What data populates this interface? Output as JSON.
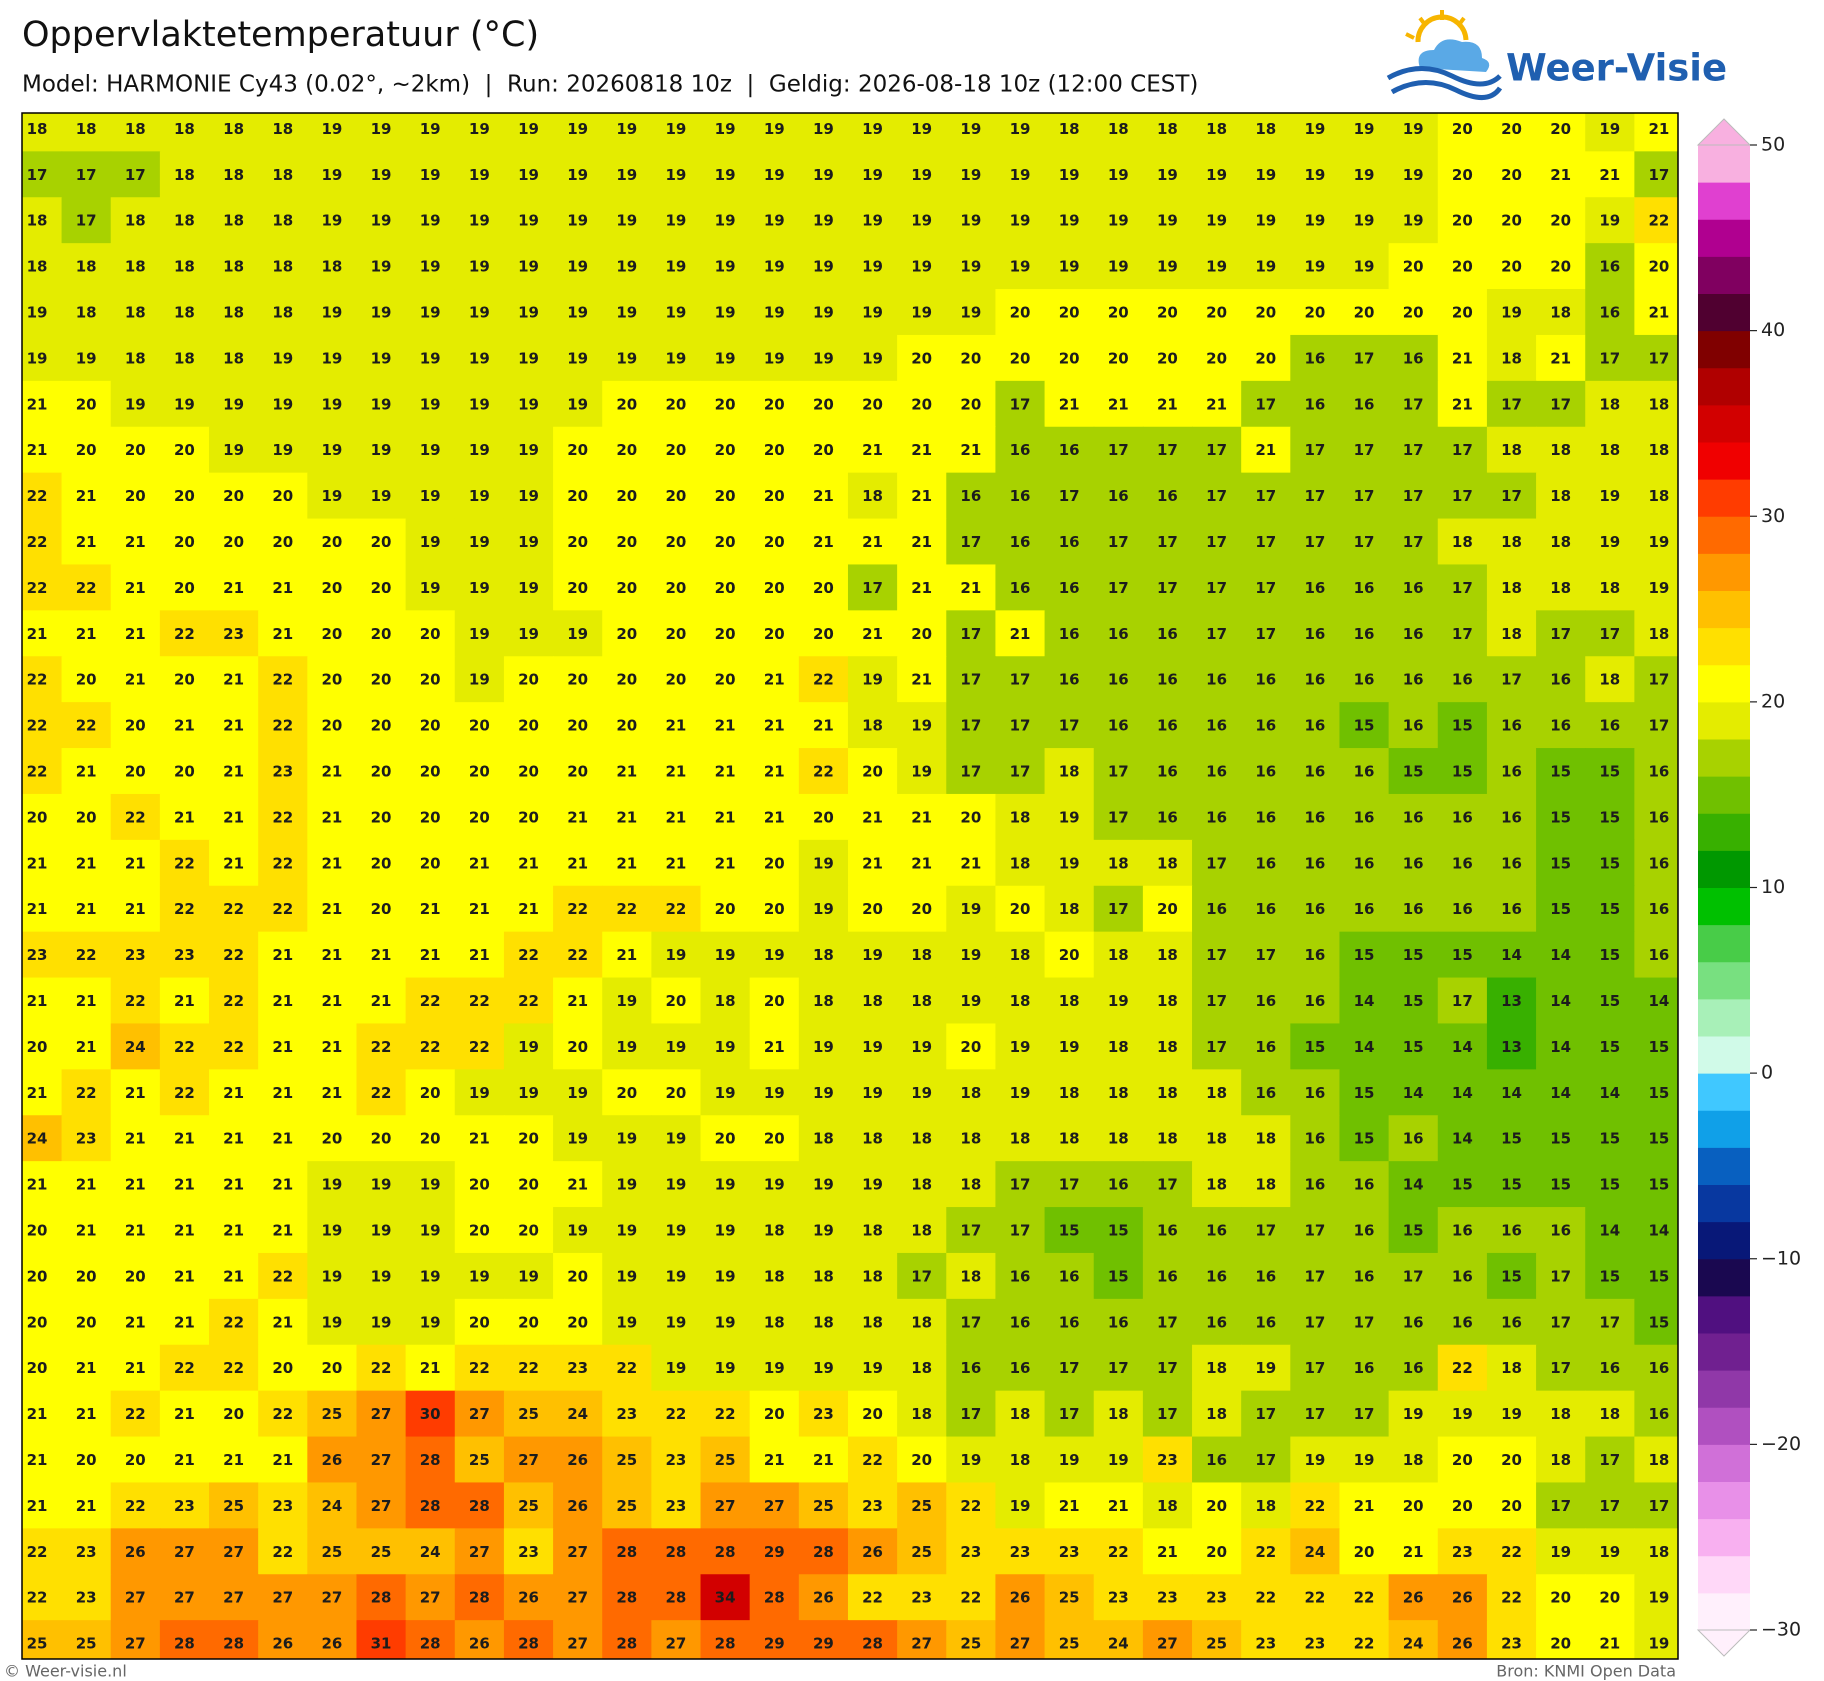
{
  "chart_data": {
    "type": "heatmap",
    "title": "Oppervlaktetemperatuur (°C)",
    "subtitle": "Model: HARMONIE Cy43 (0.02°, ~2km)  |  Run: 20260818 10z  |  Geldig: 2026-08-18 10z (12:00 CEST)",
    "values": [
      [
        18,
        18,
        18,
        18,
        18,
        18,
        19,
        19,
        19,
        19,
        19,
        19,
        19,
        19,
        19,
        19,
        19,
        19,
        19,
        19,
        19,
        18,
        18,
        18,
        18,
        18,
        19,
        19,
        19,
        20,
        20,
        20,
        19,
        21
      ],
      [
        17,
        17,
        17,
        18,
        18,
        18,
        19,
        19,
        19,
        19,
        19,
        19,
        19,
        19,
        19,
        19,
        19,
        19,
        19,
        19,
        19,
        19,
        19,
        19,
        19,
        19,
        19,
        19,
        19,
        20,
        20,
        21,
        21,
        17
      ],
      [
        18,
        17,
        18,
        18,
        18,
        18,
        19,
        19,
        19,
        19,
        19,
        19,
        19,
        19,
        19,
        19,
        19,
        19,
        19,
        19,
        19,
        19,
        19,
        19,
        19,
        19,
        19,
        19,
        19,
        20,
        20,
        20,
        19,
        22
      ],
      [
        18,
        18,
        18,
        18,
        18,
        18,
        18,
        19,
        19,
        19,
        19,
        19,
        19,
        19,
        19,
        19,
        19,
        19,
        19,
        19,
        19,
        19,
        19,
        19,
        19,
        19,
        19,
        19,
        20,
        20,
        20,
        20,
        16,
        20
      ],
      [
        19,
        18,
        18,
        18,
        18,
        18,
        19,
        19,
        19,
        19,
        19,
        19,
        19,
        19,
        19,
        19,
        19,
        19,
        19,
        19,
        20,
        20,
        20,
        20,
        20,
        20,
        20,
        20,
        20,
        20,
        19,
        18,
        16,
        21
      ],
      [
        19,
        19,
        18,
        18,
        18,
        19,
        19,
        19,
        19,
        19,
        19,
        19,
        19,
        19,
        19,
        19,
        19,
        19,
        20,
        20,
        20,
        20,
        20,
        20,
        20,
        20,
        16,
        17,
        16,
        21,
        18,
        21,
        17,
        17
      ],
      [
        21,
        20,
        19,
        19,
        19,
        19,
        19,
        19,
        19,
        19,
        19,
        19,
        20,
        20,
        20,
        20,
        20,
        20,
        20,
        20,
        17,
        21,
        21,
        21,
        21,
        17,
        16,
        16,
        17,
        21,
        17,
        17,
        18,
        18
      ],
      [
        21,
        20,
        20,
        20,
        19,
        19,
        19,
        19,
        19,
        19,
        19,
        20,
        20,
        20,
        20,
        20,
        20,
        21,
        21,
        21,
        16,
        16,
        17,
        17,
        17,
        21,
        17,
        17,
        17,
        17,
        18,
        18,
        18,
        18
      ],
      [
        22,
        21,
        20,
        20,
        20,
        20,
        19,
        19,
        19,
        19,
        19,
        20,
        20,
        20,
        20,
        20,
        21,
        18,
        21,
        16,
        16,
        17,
        16,
        16,
        17,
        17,
        17,
        17,
        17,
        17,
        17,
        18,
        19,
        18
      ],
      [
        22,
        21,
        21,
        20,
        20,
        20,
        20,
        20,
        19,
        19,
        19,
        20,
        20,
        20,
        20,
        20,
        21,
        21,
        21,
        17,
        16,
        16,
        17,
        17,
        17,
        17,
        17,
        17,
        17,
        18,
        18,
        18,
        19,
        19
      ],
      [
        22,
        22,
        21,
        20,
        21,
        21,
        20,
        20,
        19,
        19,
        19,
        20,
        20,
        20,
        20,
        20,
        20,
        17,
        21,
        21,
        16,
        16,
        17,
        17,
        17,
        17,
        16,
        16,
        16,
        17,
        18,
        18,
        18,
        19
      ],
      [
        21,
        21,
        21,
        22,
        23,
        21,
        20,
        20,
        20,
        19,
        19,
        19,
        20,
        20,
        20,
        20,
        20,
        21,
        20,
        17,
        21,
        16,
        16,
        16,
        17,
        17,
        16,
        16,
        16,
        17,
        18,
        17,
        17,
        18
      ],
      [
        22,
        20,
        21,
        20,
        21,
        22,
        20,
        20,
        20,
        19,
        20,
        20,
        20,
        20,
        20,
        21,
        22,
        19,
        21,
        17,
        17,
        16,
        16,
        16,
        16,
        16,
        16,
        16,
        16,
        16,
        17,
        16,
        18,
        17
      ],
      [
        22,
        22,
        20,
        21,
        21,
        22,
        20,
        20,
        20,
        20,
        20,
        20,
        20,
        21,
        21,
        21,
        21,
        18,
        19,
        17,
        17,
        17,
        16,
        16,
        16,
        16,
        16,
        15,
        16,
        15,
        16,
        16,
        16,
        17
      ],
      [
        22,
        21,
        20,
        20,
        21,
        23,
        21,
        20,
        20,
        20,
        20,
        20,
        21,
        21,
        21,
        21,
        22,
        20,
        19,
        17,
        17,
        18,
        17,
        16,
        16,
        16,
        16,
        16,
        15,
        15,
        16,
        15,
        15,
        16
      ],
      [
        20,
        20,
        22,
        21,
        21,
        22,
        21,
        20,
        20,
        20,
        20,
        21,
        21,
        21,
        21,
        21,
        20,
        21,
        21,
        20,
        18,
        19,
        17,
        16,
        16,
        16,
        16,
        16,
        16,
        16,
        16,
        15,
        15,
        16
      ],
      [
        21,
        21,
        21,
        22,
        21,
        22,
        21,
        20,
        20,
        21,
        21,
        21,
        21,
        21,
        21,
        20,
        19,
        21,
        21,
        21,
        18,
        19,
        18,
        18,
        17,
        16,
        16,
        16,
        16,
        16,
        16,
        15,
        15,
        16
      ],
      [
        21,
        21,
        21,
        22,
        22,
        22,
        21,
        20,
        21,
        21,
        21,
        22,
        22,
        22,
        20,
        20,
        19,
        20,
        20,
        19,
        20,
        18,
        17,
        20,
        16,
        16,
        16,
        16,
        16,
        16,
        16,
        15,
        15,
        16
      ],
      [
        23,
        22,
        23,
        23,
        22,
        21,
        21,
        21,
        21,
        21,
        22,
        22,
        21,
        19,
        19,
        19,
        18,
        19,
        18,
        19,
        18,
        20,
        18,
        18,
        17,
        17,
        16,
        15,
        15,
        15,
        14,
        14,
        15,
        16
      ],
      [
        21,
        21,
        22,
        21,
        22,
        21,
        21,
        21,
        22,
        22,
        22,
        21,
        19,
        20,
        18,
        20,
        18,
        18,
        18,
        19,
        18,
        18,
        19,
        18,
        17,
        16,
        16,
        14,
        15,
        17,
        13,
        14,
        15,
        14
      ],
      [
        20,
        21,
        24,
        22,
        22,
        21,
        21,
        22,
        22,
        22,
        19,
        20,
        19,
        19,
        19,
        21,
        19,
        19,
        19,
        20,
        19,
        19,
        18,
        18,
        17,
        16,
        15,
        14,
        15,
        14,
        13,
        14,
        15,
        15
      ],
      [
        21,
        22,
        21,
        22,
        21,
        21,
        21,
        22,
        20,
        19,
        19,
        19,
        20,
        20,
        19,
        19,
        19,
        19,
        19,
        18,
        19,
        18,
        18,
        18,
        18,
        16,
        16,
        15,
        14,
        14,
        14,
        14,
        14,
        15
      ],
      [
        24,
        23,
        21,
        21,
        21,
        21,
        20,
        20,
        20,
        21,
        20,
        19,
        19,
        19,
        20,
        20,
        18,
        18,
        18,
        18,
        18,
        18,
        18,
        18,
        18,
        18,
        16,
        15,
        16,
        14,
        15,
        15,
        15,
        15
      ],
      [
        21,
        21,
        21,
        21,
        21,
        21,
        19,
        19,
        19,
        20,
        20,
        21,
        19,
        19,
        19,
        19,
        19,
        19,
        18,
        18,
        17,
        17,
        16,
        17,
        18,
        18,
        16,
        16,
        14,
        15,
        15,
        15,
        15,
        15
      ],
      [
        20,
        21,
        21,
        21,
        21,
        21,
        19,
        19,
        19,
        20,
        20,
        19,
        19,
        19,
        19,
        18,
        19,
        18,
        18,
        17,
        17,
        15,
        15,
        16,
        16,
        17,
        17,
        16,
        15,
        16,
        16,
        16,
        14,
        14
      ],
      [
        20,
        20,
        20,
        21,
        21,
        22,
        19,
        19,
        19,
        19,
        19,
        20,
        19,
        19,
        19,
        18,
        18,
        18,
        17,
        18,
        16,
        16,
        15,
        16,
        16,
        16,
        17,
        16,
        17,
        16,
        15,
        17,
        15,
        15
      ],
      [
        20,
        20,
        21,
        21,
        22,
        21,
        19,
        19,
        19,
        20,
        20,
        20,
        19,
        19,
        19,
        18,
        18,
        18,
        18,
        17,
        16,
        16,
        16,
        17,
        16,
        16,
        17,
        17,
        16,
        16,
        16,
        17,
        17,
        15
      ],
      [
        20,
        21,
        21,
        22,
        22,
        20,
        20,
        22,
        21,
        22,
        22,
        23,
        22,
        19,
        19,
        19,
        19,
        19,
        18,
        16,
        16,
        17,
        17,
        17,
        18,
        19,
        17,
        16,
        16,
        22,
        18,
        17,
        16,
        16
      ],
      [
        21,
        21,
        22,
        21,
        20,
        22,
        25,
        27,
        30,
        27,
        25,
        24,
        23,
        22,
        22,
        20,
        23,
        20,
        18,
        17,
        18,
        17,
        18,
        17,
        18,
        17,
        17,
        17,
        19,
        19,
        19,
        18,
        18,
        16
      ],
      [
        21,
        20,
        20,
        21,
        21,
        21,
        26,
        27,
        28,
        25,
        27,
        26,
        25,
        23,
        25,
        21,
        21,
        22,
        20,
        19,
        18,
        19,
        19,
        23,
        16,
        17,
        19,
        19,
        18,
        20,
        20,
        18,
        17,
        18
      ],
      [
        21,
        21,
        22,
        23,
        25,
        23,
        24,
        27,
        28,
        28,
        25,
        26,
        25,
        23,
        27,
        27,
        25,
        23,
        25,
        22,
        19,
        21,
        21,
        18,
        20,
        18,
        22,
        21,
        20,
        20,
        20,
        17,
        17,
        17
      ],
      [
        22,
        23,
        26,
        27,
        27,
        22,
        25,
        25,
        24,
        27,
        23,
        27,
        28,
        28,
        28,
        29,
        28,
        26,
        25,
        23,
        23,
        23,
        22,
        21,
        20,
        22,
        24,
        20,
        21,
        23,
        22,
        19,
        19,
        18
      ],
      [
        22,
        23,
        27,
        27,
        27,
        27,
        27,
        28,
        27,
        28,
        26,
        27,
        28,
        28,
        34,
        28,
        26,
        22,
        23,
        22,
        26,
        25,
        23,
        23,
        23,
        22,
        22,
        22,
        26,
        26,
        22,
        20,
        20,
        19
      ],
      [
        25,
        25,
        27,
        28,
        28,
        26,
        26,
        31,
        28,
        26,
        28,
        27,
        28,
        27,
        28,
        29,
        29,
        28,
        27,
        25,
        27,
        25,
        24,
        27,
        25,
        23,
        23,
        22,
        24,
        26,
        23,
        20,
        21,
        19
      ]
    ],
    "colorscale": {
      "lim": [
        -30,
        50
      ],
      "colors": [
        "#fff0fc",
        "#ffd8f8",
        "#f8b0f0",
        "#e890e8",
        "#d070d8",
        "#b050c0",
        "#9038a8",
        "#702090",
        "#501080",
        "#1a0850",
        "#081878",
        "#0838a0",
        "#0860c0",
        "#10a0e8",
        "#40c8ff",
        "#d0fae8",
        "#a8f0b8",
        "#78e080",
        "#48cc48",
        "#00c000",
        "#009800",
        "#38b000",
        "#70c000",
        "#a8d200",
        "#e4ec00",
        "#ffff00",
        "#ffe000",
        "#ffc000",
        "#ff9800",
        "#ff6a00",
        "#ff3c00",
        "#f00000",
        "#d20000",
        "#b00000",
        "#800000",
        "#500030",
        "#800060",
        "#b00090",
        "#e040d0",
        "#f8b0e0"
      ],
      "ticks": [
        {
          "value": -30,
          "label": "−30"
        },
        {
          "value": -20,
          "label": "−20"
        },
        {
          "value": -10,
          "label": "−10"
        },
        0,
        10,
        20,
        30,
        40,
        50
      ]
    }
  },
  "logo": "Weer-Visie",
  "footer": {
    "credit": "© Weer-visie.nl",
    "source": "Bron: KNMI Open Data"
  }
}
